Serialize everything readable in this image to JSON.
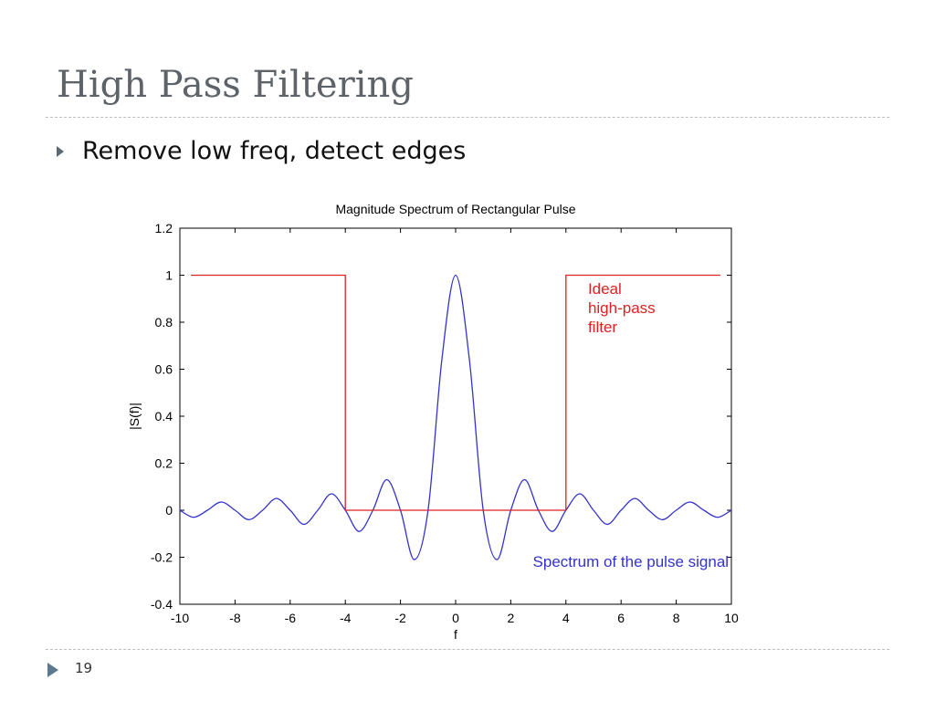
{
  "slide": {
    "title": "High Pass Filtering",
    "bullet": "Remove low freq, detect edges",
    "page_number": "19"
  },
  "chart_data": {
    "type": "line",
    "title": "Magnitude Spectrum of Rectangular Pulse",
    "xlabel": "f",
    "ylabel": "|S(f)|",
    "xlim": [
      -10,
      10
    ],
    "ylim": [
      -0.4,
      1.2
    ],
    "xticks": [
      -10,
      -8,
      -6,
      -4,
      -2,
      0,
      2,
      4,
      6,
      8,
      10
    ],
    "yticks": [
      -0.4,
      -0.2,
      0,
      0.2,
      0.4,
      0.6,
      0.8,
      1,
      1.2
    ],
    "series": [
      {
        "name": "Spectrum of the pulse signal",
        "color": "#3333cc",
        "x": [
          -10,
          -9.5,
          -9,
          -8.5,
          -8,
          -7.5,
          -7,
          -6.5,
          -6,
          -5.5,
          -5,
          -4.5,
          -4,
          -3.5,
          -3,
          -2.5,
          -2,
          -1.5,
          -1,
          -0.5,
          0,
          0.5,
          1,
          1.5,
          2,
          2.5,
          3,
          3.5,
          4,
          4.5,
          5,
          5.5,
          6,
          6.5,
          7,
          7.5,
          8,
          8.5,
          9,
          9.5,
          10
        ],
        "y": [
          0,
          -0.03,
          0,
          0.035,
          0,
          -0.04,
          0,
          0.05,
          0,
          -0.06,
          0,
          0.07,
          0,
          -0.09,
          0,
          0.13,
          0,
          -0.21,
          0,
          0.64,
          1,
          0.64,
          0,
          -0.21,
          0,
          0.13,
          0,
          -0.09,
          0,
          0.07,
          0,
          -0.06,
          0,
          0.05,
          0,
          -0.04,
          0,
          0.035,
          0,
          -0.03,
          0
        ]
      },
      {
        "name": "Ideal high-pass filter",
        "color": "#dd2222",
        "x": [
          -9.6,
          -4,
          -4,
          4,
          4,
          9.6
        ],
        "y": [
          1,
          1,
          0,
          0,
          1,
          1
        ]
      }
    ],
    "annotations": [
      {
        "lines": [
          "Ideal",
          "high-pass",
          "filter"
        ],
        "x": 4.8,
        "y": 0.92,
        "color": "#dd2222"
      },
      {
        "lines": [
          "Spectrum of the pulse signal"
        ],
        "x": 2.8,
        "y": -0.24,
        "color": "#3333cc"
      }
    ]
  }
}
